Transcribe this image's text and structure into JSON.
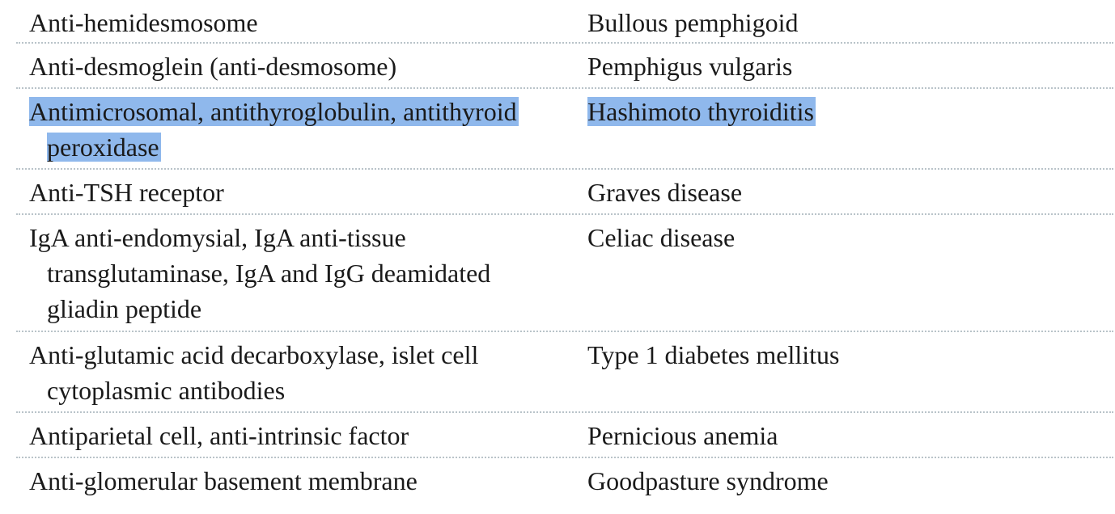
{
  "rows": [
    {
      "antibody": "Anti-hemidesmosome",
      "disease": "Bullous pemphigoid",
      "selected": false
    },
    {
      "antibody": "Anti-desmoglein (anti-desmosome)",
      "disease": "Pemphigus vulgaris",
      "selected": false
    },
    {
      "antibody": "Antimicrosomal, antithyroglobulin, antithyroid peroxidase",
      "disease": "Hashimoto thyroiditis",
      "selected": true
    },
    {
      "antibody": "Anti-TSH receptor",
      "disease": "Graves disease",
      "selected": false
    },
    {
      "antibody": "IgA anti-endomysial, IgA anti-tissue transglutaminase, IgA and IgG deamidated gliadin peptide",
      "disease": "Celiac disease",
      "selected": false
    },
    {
      "antibody": "Anti-glutamic acid decarboxylase, islet cell cytoplasmic antibodies",
      "disease": "Type 1 diabetes mellitus",
      "selected": false
    },
    {
      "antibody": "Antiparietal cell, anti-intrinsic factor",
      "disease": "Pernicious anemia",
      "selected": false
    },
    {
      "antibody": "Anti-glomerular basement membrane",
      "disease": "Goodpasture syndrome",
      "selected": false
    }
  ],
  "colors": {
    "selection_highlight": "#8fb8ec",
    "row_divider": "#b9c3c9",
    "text": "#1a1a1a"
  }
}
